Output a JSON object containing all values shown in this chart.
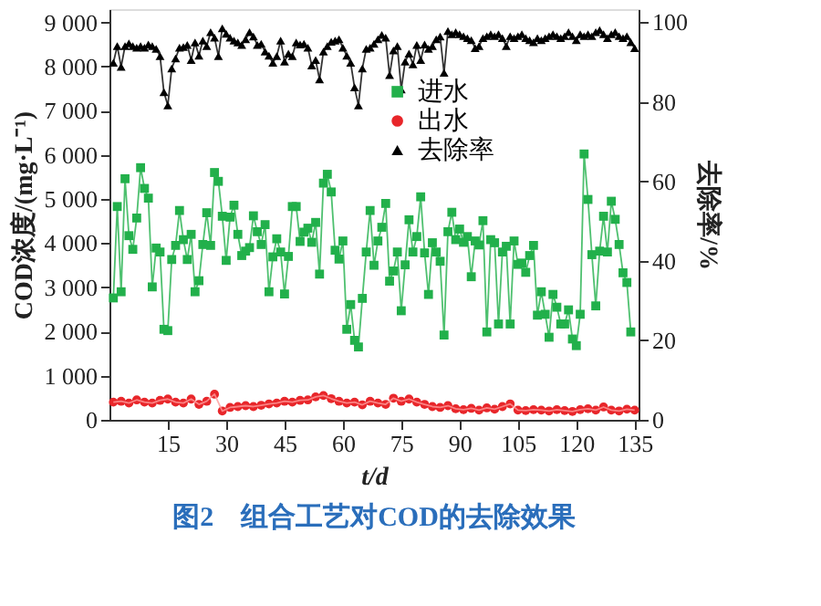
{
  "chart_data": {
    "type": "line",
    "title": "图2　组合工艺对COD的去除效果",
    "xlabel": "t/d",
    "ylabel": "COD浓度/(mg·L⁻¹)",
    "y2label": "去除率/%",
    "xlim": [
      0,
      136
    ],
    "xticks": [
      15,
      30,
      45,
      60,
      75,
      90,
      105,
      120,
      135
    ],
    "ylim": [
      0,
      9300
    ],
    "yticks": [
      0,
      {
        "value": 1000,
        "label": "1 000"
      },
      {
        "value": 2000,
        "label": "2 000"
      },
      {
        "value": 3000,
        "label": "3 000"
      },
      {
        "value": 4000,
        "label": "4 000"
      },
      {
        "value": 5000,
        "label": "5 000"
      },
      {
        "value": 6000,
        "label": "6 000"
      },
      {
        "value": 7000,
        "label": "7 000"
      },
      {
        "value": 8000,
        "label": "8 000"
      },
      {
        "value": 9000,
        "label": "9 000"
      }
    ],
    "y2lim": [
      0,
      103.3
    ],
    "y2ticks": [
      0,
      20,
      40,
      60,
      80,
      100
    ],
    "grid": false,
    "legend": "right",
    "line_style": "solid",
    "series": [
      {
        "name": "进水",
        "color": "#22b04b",
        "marker": "square",
        "x": [
          1,
          2,
          3,
          4,
          5,
          6,
          7,
          8,
          9,
          10,
          11,
          12,
          13,
          14,
          15,
          16,
          17,
          18,
          19,
          20,
          21,
          22,
          23,
          24,
          25,
          26,
          27,
          28,
          29,
          30,
          31,
          32,
          33,
          34,
          35,
          36,
          37,
          38,
          39,
          40,
          41,
          42,
          43,
          44,
          45,
          46,
          47,
          48,
          49,
          50,
          51,
          52,
          53,
          54,
          55,
          56,
          57,
          58,
          59,
          60,
          61,
          62,
          63,
          64,
          65,
          66,
          67,
          68,
          69,
          70,
          71,
          72,
          73,
          74,
          75,
          76,
          77,
          78,
          79,
          80,
          81,
          82,
          83,
          84,
          85,
          86,
          87,
          88,
          89,
          90,
          91,
          92,
          93,
          94,
          95,
          96,
          97,
          98,
          99,
          100,
          101,
          102,
          103,
          104,
          105,
          106,
          107,
          108,
          109,
          110,
          111,
          112,
          113,
          114,
          115,
          116,
          117,
          118,
          119,
          120,
          121,
          122,
          123,
          124,
          125,
          126,
          127,
          128,
          129,
          130,
          131,
          132,
          133,
          134
        ],
        "values": [
          2760,
          4830,
          2900,
          5460,
          4170,
          3860,
          4570,
          5710,
          5240,
          5020,
          3010,
          3890,
          3800,
          2050,
          2020,
          3630,
          3950,
          4740,
          4080,
          3630,
          4200,
          2900,
          3150,
          3970,
          4690,
          3950,
          5600,
          5400,
          4610,
          3610,
          4590,
          4860,
          4200,
          3720,
          3820,
          3900,
          4620,
          4260,
          3970,
          4420,
          2900,
          3690,
          4100,
          3800,
          2850,
          3700,
          4830,
          4830,
          4040,
          4250,
          4340,
          4020,
          4470,
          3300,
          5360,
          5560,
          5160,
          3840,
          3640,
          4050,
          2050,
          2610,
          1800,
          1650,
          2750,
          3800,
          4740,
          3500,
          4050,
          4360,
          4900,
          3140,
          3370,
          3800,
          2470,
          3510,
          4530,
          3800,
          4150,
          5050,
          3780,
          2840,
          4010,
          3800,
          3590,
          1920,
          4260,
          4700,
          4080,
          4320,
          4020,
          4150,
          3240,
          4050,
          3960,
          4510,
          1990,
          4080,
          4010,
          2170,
          3800,
          3930,
          2170,
          4050,
          3520,
          3550,
          3340,
          3720,
          3950,
          2370,
          2900,
          2390,
          1870,
          2840,
          2550,
          2170,
          2170,
          2490,
          1830,
          1680,
          2390,
          6020,
          4990,
          3740,
          2580,
          3820,
          4610,
          3800,
          4950,
          4540,
          3970,
          3330,
          3110,
          1990
        ]
      },
      {
        "name": "出水",
        "color": "#e8262a",
        "marker": "circle",
        "x": [
          1,
          3,
          5,
          7,
          9,
          11,
          13,
          15,
          17,
          19,
          21,
          23,
          25,
          27,
          29,
          31,
          33,
          35,
          37,
          39,
          41,
          43,
          45,
          47,
          49,
          51,
          53,
          55,
          57,
          59,
          61,
          63,
          65,
          67,
          69,
          71,
          73,
          75,
          77,
          79,
          81,
          83,
          85,
          87,
          89,
          91,
          93,
          95,
          97,
          99,
          101,
          103,
          105,
          107,
          109,
          111,
          113,
          115,
          117,
          119,
          121,
          123,
          125,
          127,
          129,
          131,
          133,
          135
        ],
        "values": [
          400,
          420,
          380,
          450,
          400,
          380,
          440,
          470,
          400,
          380,
          470,
          350,
          420,
          580,
          200,
          280,
          300,
          320,
          300,
          330,
          360,
          380,
          420,
          400,
          440,
          450,
          520,
          550,
          480,
          420,
          380,
          400,
          340,
          420,
          380,
          350,
          490,
          420,
          470,
          400,
          350,
          300,
          280,
          320,
          250,
          230,
          260,
          220,
          270,
          240,
          300,
          360,
          220,
          210,
          230,
          220,
          200,
          230,
          210,
          190,
          230,
          250,
          220,
          290,
          220,
          200,
          240,
          220
        ]
      },
      {
        "name": "去除率",
        "color": "#000000",
        "marker": "triangle",
        "axis": "y2",
        "x": [
          1,
          2,
          3,
          4,
          5,
          6,
          7,
          8,
          9,
          10,
          11,
          12,
          13,
          14,
          15,
          16,
          17,
          18,
          19,
          20,
          21,
          22,
          23,
          24,
          25,
          26,
          27,
          28,
          29,
          30,
          31,
          32,
          33,
          34,
          35,
          36,
          37,
          38,
          39,
          40,
          41,
          42,
          43,
          44,
          45,
          46,
          47,
          48,
          49,
          50,
          51,
          52,
          53,
          54,
          55,
          56,
          57,
          58,
          59,
          60,
          61,
          62,
          63,
          64,
          65,
          66,
          67,
          68,
          69,
          70,
          71,
          72,
          73,
          74,
          75,
          76,
          77,
          78,
          79,
          80,
          81,
          82,
          83,
          84,
          85,
          86,
          87,
          88,
          89,
          90,
          91,
          92,
          93,
          94,
          95,
          96,
          97,
          98,
          99,
          100,
          101,
          102,
          103,
          104,
          105,
          106,
          107,
          108,
          109,
          110,
          111,
          112,
          113,
          114,
          115,
          116,
          117,
          118,
          119,
          120,
          121,
          122,
          123,
          124,
          125,
          126,
          127,
          128,
          129,
          130,
          131,
          132,
          133,
          134,
          135
        ],
        "values": [
          89.8,
          94,
          88.8,
          94,
          94.7,
          94,
          93.6,
          94,
          93.6,
          94.4,
          94,
          93.3,
          91.5,
          82.4,
          79.1,
          88.4,
          90.9,
          93.6,
          93.8,
          94.3,
          90.5,
          94.9,
          91.6,
          95.4,
          94,
          97.5,
          96.1,
          91.5,
          98.5,
          97.1,
          96.1,
          95.4,
          94.9,
          94.3,
          95.7,
          97.5,
          96.4,
          94.3,
          94.6,
          92.6,
          91.6,
          89.8,
          91.5,
          95.4,
          90.1,
          92.1,
          91.5,
          94.9,
          94.4,
          94.6,
          93.6,
          89.1,
          90.5,
          85.6,
          92.6,
          94,
          95.1,
          95.4,
          95.7,
          93.6,
          91.6,
          89.8,
          83.6,
          79.1,
          88.4,
          93.3,
          93.6,
          94.6,
          95.7,
          96.8,
          96.1,
          86.7,
          92.9,
          94,
          83.1,
          90.1,
          92.1,
          89.4,
          94.3,
          90.5,
          94.4,
          93.3,
          94,
          95.7,
          96.4,
          87.3,
          97.8,
          97,
          97.5,
          97,
          96.5,
          96,
          95.5,
          93.5,
          94,
          96,
          96.5,
          97,
          96.5,
          97,
          96,
          94,
          96.5,
          96,
          96.5,
          97,
          96,
          95.5,
          95,
          96,
          95.5,
          96,
          96.5,
          97,
          96.5,
          96,
          96.5,
          97.5,
          96.5,
          95.5,
          97,
          96.5,
          97,
          96.5,
          97.5,
          98,
          97,
          96,
          97,
          97.5,
          96.5,
          96,
          96.5,
          95,
          93.5
        ]
      }
    ]
  }
}
